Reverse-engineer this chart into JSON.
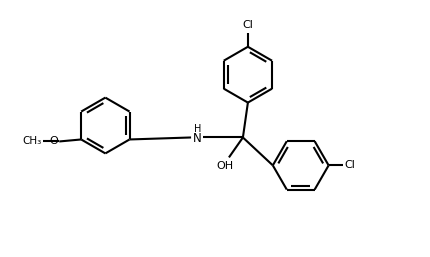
{
  "bg": "#ffffff",
  "lc": "black",
  "lw": 1.5,
  "fs": 8.0,
  "r": 0.28,
  "xlim": [
    0.0,
    4.3
  ],
  "ylim": [
    0.3,
    2.6
  ]
}
